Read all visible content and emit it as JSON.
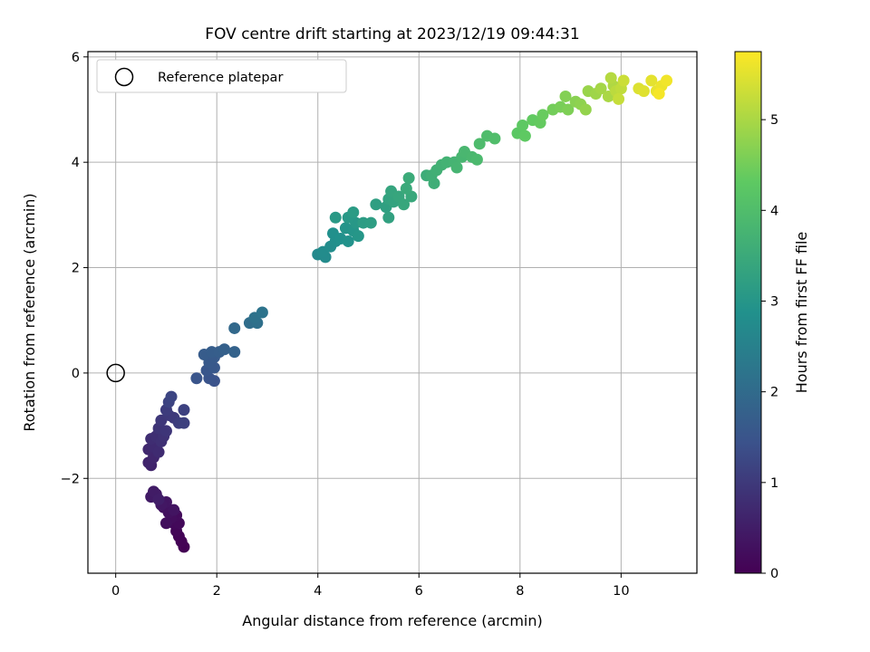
{
  "chart_data": {
    "type": "scatter",
    "title": "FOV centre drift starting at 2023/12/19 09:44:31",
    "xlabel": "Angular distance from reference (arcmin)",
    "ylabel": "Rotation from reference (arcmin)",
    "xlim": [
      -0.55,
      11.5
    ],
    "ylim": [
      -3.8,
      6.1
    ],
    "xticks": [
      0,
      2,
      4,
      6,
      8,
      10
    ],
    "xtick_labels": [
      "0",
      "2",
      "4",
      "6",
      "8",
      "10"
    ],
    "yticks": [
      -2,
      0,
      2,
      4,
      6
    ],
    "ytick_labels": [
      "−2",
      "0",
      "2",
      "4",
      "6"
    ],
    "grid": true,
    "legend": {
      "placement": "top-left",
      "entries": [
        {
          "label": "Reference platepar",
          "marker": "open-circle"
        }
      ]
    },
    "reference_point": {
      "x": 0,
      "y": 0
    },
    "colorbar": {
      "label": "Hours from first FF file",
      "colormap": "viridis",
      "range": [
        0,
        5.75
      ],
      "ticks": [
        0,
        1,
        2,
        3,
        4,
        5
      ],
      "tick_labels": [
        "0",
        "1",
        "2",
        "3",
        "4",
        "5"
      ]
    },
    "marker_color": "#1f77b4",
    "points": [
      {
        "x": 1.35,
        "y": -3.3,
        "t": 0.0
      },
      {
        "x": 1.3,
        "y": -3.2,
        "t": 0.03
      },
      {
        "x": 1.25,
        "y": -3.1,
        "t": 0.06
      },
      {
        "x": 1.2,
        "y": -3.0,
        "t": 0.09
      },
      {
        "x": 1.15,
        "y": -2.85,
        "t": 0.12
      },
      {
        "x": 1.25,
        "y": -2.85,
        "t": 0.15
      },
      {
        "x": 1.2,
        "y": -2.7,
        "t": 0.18
      },
      {
        "x": 1.1,
        "y": -2.75,
        "t": 0.21
      },
      {
        "x": 1.0,
        "y": -2.85,
        "t": 0.24
      },
      {
        "x": 1.05,
        "y": -2.65,
        "t": 0.27
      },
      {
        "x": 0.95,
        "y": -2.55,
        "t": 0.3
      },
      {
        "x": 1.15,
        "y": -2.6,
        "t": 0.33
      },
      {
        "x": 1.0,
        "y": -2.45,
        "t": 0.36
      },
      {
        "x": 0.9,
        "y": -2.5,
        "t": 0.39
      },
      {
        "x": 0.8,
        "y": -2.3,
        "t": 0.42
      },
      {
        "x": 0.7,
        "y": -2.35,
        "t": 0.45
      },
      {
        "x": 0.75,
        "y": -2.25,
        "t": 0.48
      },
      {
        "x": 0.85,
        "y": -2.4,
        "t": 0.51
      },
      {
        "x": 0.7,
        "y": -1.75,
        "t": 0.6
      },
      {
        "x": 0.65,
        "y": -1.7,
        "t": 0.63
      },
      {
        "x": 0.75,
        "y": -1.6,
        "t": 0.66
      },
      {
        "x": 0.65,
        "y": -1.45,
        "t": 0.69
      },
      {
        "x": 0.75,
        "y": -1.4,
        "t": 0.72
      },
      {
        "x": 0.85,
        "y": -1.5,
        "t": 0.75
      },
      {
        "x": 0.7,
        "y": -1.25,
        "t": 0.78
      },
      {
        "x": 0.8,
        "y": -1.2,
        "t": 0.81
      },
      {
        "x": 0.9,
        "y": -1.3,
        "t": 0.84
      },
      {
        "x": 0.95,
        "y": -1.2,
        "t": 0.87
      },
      {
        "x": 0.85,
        "y": -1.05,
        "t": 0.9
      },
      {
        "x": 1.0,
        "y": -1.1,
        "t": 0.93
      },
      {
        "x": 0.9,
        "y": -0.9,
        "t": 0.96
      },
      {
        "x": 1.05,
        "y": -0.8,
        "t": 0.99
      },
      {
        "x": 1.15,
        "y": -0.85,
        "t": 1.02
      },
      {
        "x": 1.0,
        "y": -0.7,
        "t": 1.05
      },
      {
        "x": 1.25,
        "y": -0.95,
        "t": 1.08
      },
      {
        "x": 1.35,
        "y": -0.95,
        "t": 1.11
      },
      {
        "x": 1.35,
        "y": -0.7,
        "t": 1.14
      },
      {
        "x": 1.05,
        "y": -0.55,
        "t": 1.17
      },
      {
        "x": 1.1,
        "y": -0.45,
        "t": 1.2
      },
      {
        "x": 1.95,
        "y": -0.15,
        "t": 1.45
      },
      {
        "x": 1.85,
        "y": -0.1,
        "t": 1.48
      },
      {
        "x": 1.6,
        "y": -0.1,
        "t": 1.51
      },
      {
        "x": 1.8,
        "y": 0.05,
        "t": 1.54
      },
      {
        "x": 1.95,
        "y": 0.1,
        "t": 1.57
      },
      {
        "x": 1.85,
        "y": 0.2,
        "t": 1.6
      },
      {
        "x": 1.95,
        "y": 0.3,
        "t": 1.63
      },
      {
        "x": 1.75,
        "y": 0.35,
        "t": 1.66
      },
      {
        "x": 1.9,
        "y": 0.4,
        "t": 1.69
      },
      {
        "x": 2.05,
        "y": 0.4,
        "t": 1.72
      },
      {
        "x": 2.15,
        "y": 0.45,
        "t": 1.75
      },
      {
        "x": 2.35,
        "y": 0.4,
        "t": 1.8
      },
      {
        "x": 2.35,
        "y": 0.85,
        "t": 1.95
      },
      {
        "x": 2.65,
        "y": 0.95,
        "t": 2.05
      },
      {
        "x": 2.8,
        "y": 0.95,
        "t": 2.1
      },
      {
        "x": 2.75,
        "y": 1.05,
        "t": 2.15
      },
      {
        "x": 2.9,
        "y": 1.15,
        "t": 2.2
      },
      {
        "x": 4.0,
        "y": 2.25,
        "t": 2.7
      },
      {
        "x": 4.15,
        "y": 2.2,
        "t": 2.73
      },
      {
        "x": 4.1,
        "y": 2.3,
        "t": 2.76
      },
      {
        "x": 4.25,
        "y": 2.4,
        "t": 2.79
      },
      {
        "x": 4.35,
        "y": 2.5,
        "t": 2.82
      },
      {
        "x": 4.3,
        "y": 2.65,
        "t": 2.85
      },
      {
        "x": 4.45,
        "y": 2.55,
        "t": 2.88
      },
      {
        "x": 4.6,
        "y": 2.5,
        "t": 2.91
      },
      {
        "x": 4.55,
        "y": 2.75,
        "t": 2.94
      },
      {
        "x": 4.7,
        "y": 2.7,
        "t": 2.97
      },
      {
        "x": 4.8,
        "y": 2.6,
        "t": 3.0
      },
      {
        "x": 4.75,
        "y": 2.85,
        "t": 3.03
      },
      {
        "x": 4.6,
        "y": 2.95,
        "t": 3.06
      },
      {
        "x": 4.35,
        "y": 2.95,
        "t": 3.09
      },
      {
        "x": 4.7,
        "y": 3.05,
        "t": 3.12
      },
      {
        "x": 4.9,
        "y": 2.85,
        "t": 3.15
      },
      {
        "x": 5.05,
        "y": 2.85,
        "t": 3.18
      },
      {
        "x": 5.15,
        "y": 3.2,
        "t": 3.21
      },
      {
        "x": 5.35,
        "y": 3.15,
        "t": 3.24
      },
      {
        "x": 5.4,
        "y": 2.95,
        "t": 3.27
      },
      {
        "x": 5.4,
        "y": 3.3,
        "t": 3.3
      },
      {
        "x": 5.5,
        "y": 3.25,
        "t": 3.33
      },
      {
        "x": 5.45,
        "y": 3.45,
        "t": 3.36
      },
      {
        "x": 5.6,
        "y": 3.35,
        "t": 3.39
      },
      {
        "x": 5.7,
        "y": 3.2,
        "t": 3.42
      },
      {
        "x": 5.85,
        "y": 3.35,
        "t": 3.45
      },
      {
        "x": 5.75,
        "y": 3.5,
        "t": 3.48
      },
      {
        "x": 5.8,
        "y": 3.7,
        "t": 3.51
      },
      {
        "x": 6.15,
        "y": 3.75,
        "t": 3.56
      },
      {
        "x": 6.3,
        "y": 3.6,
        "t": 3.59
      },
      {
        "x": 6.25,
        "y": 3.75,
        "t": 3.62
      },
      {
        "x": 6.35,
        "y": 3.85,
        "t": 3.65
      },
      {
        "x": 6.45,
        "y": 3.95,
        "t": 3.68
      },
      {
        "x": 6.55,
        "y": 4.0,
        "t": 3.71
      },
      {
        "x": 6.7,
        "y": 4.0,
        "t": 3.74
      },
      {
        "x": 6.75,
        "y": 3.9,
        "t": 3.77
      },
      {
        "x": 6.85,
        "y": 4.1,
        "t": 3.8
      },
      {
        "x": 6.9,
        "y": 4.2,
        "t": 3.83
      },
      {
        "x": 7.05,
        "y": 4.1,
        "t": 3.86
      },
      {
        "x": 7.15,
        "y": 4.05,
        "t": 3.89
      },
      {
        "x": 7.2,
        "y": 4.35,
        "t": 3.95
      },
      {
        "x": 7.35,
        "y": 4.5,
        "t": 3.98
      },
      {
        "x": 7.5,
        "y": 4.45,
        "t": 4.01
      },
      {
        "x": 7.95,
        "y": 4.55,
        "t": 4.25
      },
      {
        "x": 8.05,
        "y": 4.7,
        "t": 4.28
      },
      {
        "x": 8.1,
        "y": 4.5,
        "t": 4.31
      },
      {
        "x": 8.25,
        "y": 4.8,
        "t": 4.34
      },
      {
        "x": 8.4,
        "y": 4.75,
        "t": 4.37
      },
      {
        "x": 8.45,
        "y": 4.9,
        "t": 4.4
      },
      {
        "x": 8.65,
        "y": 5.0,
        "t": 4.5
      },
      {
        "x": 8.8,
        "y": 5.05,
        "t": 4.55
      },
      {
        "x": 8.95,
        "y": 5.0,
        "t": 4.6
      },
      {
        "x": 8.9,
        "y": 5.25,
        "t": 4.65
      },
      {
        "x": 9.1,
        "y": 5.15,
        "t": 4.7
      },
      {
        "x": 9.2,
        "y": 5.1,
        "t": 4.75
      },
      {
        "x": 9.3,
        "y": 5.0,
        "t": 4.8
      },
      {
        "x": 9.35,
        "y": 5.35,
        "t": 4.85
      },
      {
        "x": 9.5,
        "y": 5.3,
        "t": 4.9
      },
      {
        "x": 9.6,
        "y": 5.4,
        "t": 4.95
      },
      {
        "x": 9.75,
        "y": 5.25,
        "t": 5.0
      },
      {
        "x": 9.85,
        "y": 5.45,
        "t": 5.05
      },
      {
        "x": 9.8,
        "y": 5.6,
        "t": 5.1
      },
      {
        "x": 9.9,
        "y": 5.35,
        "t": 5.15
      },
      {
        "x": 10.0,
        "y": 5.4,
        "t": 5.2
      },
      {
        "x": 9.95,
        "y": 5.2,
        "t": 5.25
      },
      {
        "x": 10.05,
        "y": 5.55,
        "t": 5.3
      },
      {
        "x": 10.35,
        "y": 5.4,
        "t": 5.45
      },
      {
        "x": 10.45,
        "y": 5.35,
        "t": 5.48
      },
      {
        "x": 10.6,
        "y": 5.55,
        "t": 5.52
      },
      {
        "x": 10.7,
        "y": 5.35,
        "t": 5.56
      },
      {
        "x": 10.8,
        "y": 5.45,
        "t": 5.6
      },
      {
        "x": 10.9,
        "y": 5.55,
        "t": 5.64
      },
      {
        "x": 10.75,
        "y": 5.3,
        "t": 5.68
      }
    ]
  }
}
